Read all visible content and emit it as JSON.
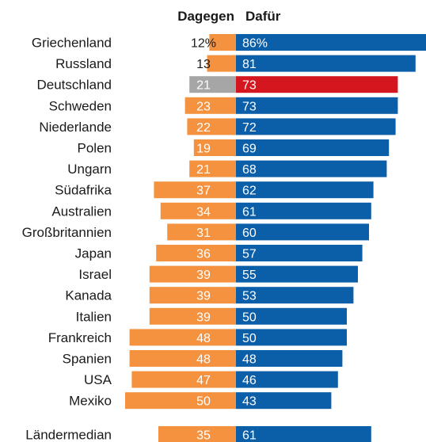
{
  "chart_data": {
    "type": "bar",
    "layout": "diverging",
    "headers": {
      "against": "Dagegen",
      "for": "Dafür"
    },
    "categories": [
      "Griechenland",
      "Russland",
      "Deutschland",
      "Schweden",
      "Niederlande",
      "Polen",
      "Ungarn",
      "Südafrika",
      "Australien",
      "Großbritannien",
      "Japan",
      "Israel",
      "Kanada",
      "Italien",
      "Frankreich",
      "Spanien",
      "USA",
      "Mexiko"
    ],
    "series": [
      {
        "key": "against",
        "values": [
          12,
          13,
          21,
          23,
          22,
          19,
          21,
          37,
          34,
          31,
          36,
          39,
          39,
          39,
          48,
          48,
          47,
          50
        ]
      },
      {
        "key": "for",
        "values": [
          86,
          81,
          73,
          73,
          72,
          69,
          68,
          62,
          61,
          60,
          57,
          55,
          53,
          50,
          50,
          48,
          46,
          43
        ]
      }
    ],
    "against_labels": [
      "12%",
      "13",
      "21",
      "23",
      "22",
      "19",
      "21",
      "37",
      "34",
      "31",
      "36",
      "39",
      "39",
      "39",
      "48",
      "48",
      "47",
      "50"
    ],
    "for_labels": [
      "86%",
      "81",
      "73",
      "73",
      "72",
      "69",
      "68",
      "62",
      "61",
      "60",
      "57",
      "55",
      "53",
      "50",
      "50",
      "48",
      "46",
      "43"
    ],
    "median": {
      "label": "Ländermedian",
      "against": 35,
      "for": 61,
      "against_label": "35",
      "for_label": "61"
    },
    "highlight_index": 2,
    "colors": {
      "against": "#f4923f",
      "for": "#0b5ea8",
      "highlight_against": "#a6a6a6",
      "highlight_for": "#d4171f",
      "text_dark": "#1a1a1a",
      "text_light": "#ffffff"
    }
  }
}
